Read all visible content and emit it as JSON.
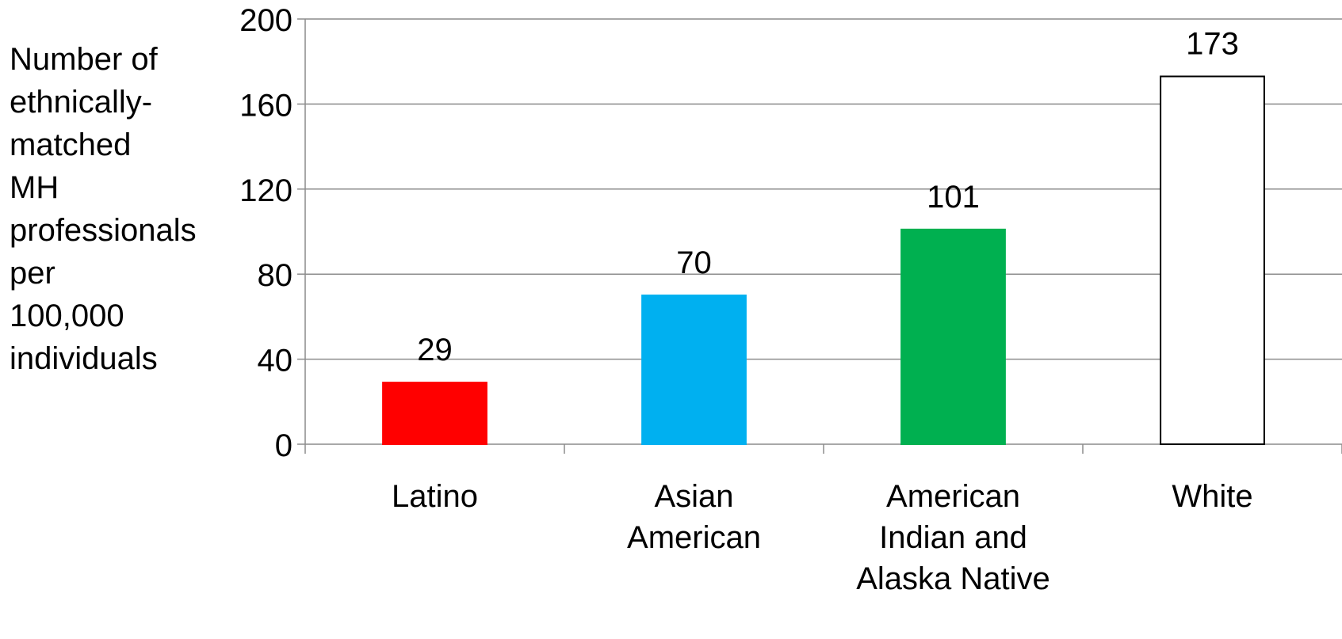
{
  "chart_data": {
    "type": "bar",
    "title": "",
    "ylabel": "Number of\nethnically-\nmatched\nMH\nprofessionals\nper\n100,000\nindividuals",
    "xlabel": "",
    "ylim": [
      0,
      200
    ],
    "yticks": [
      0,
      40,
      80,
      120,
      160,
      200
    ],
    "grid": true,
    "categories": [
      "Latino",
      "Asian\nAmerican",
      "American\nIndian and\nAlaska Native",
      "White"
    ],
    "values": [
      29,
      70,
      101,
      173
    ],
    "data_labels": [
      "29",
      "70",
      "101",
      "173"
    ],
    "bar_colors": [
      "#ff0000",
      "#00b0f0",
      "#00b050",
      "#ffffff"
    ],
    "bar_outline_colors": [
      "#ff0000",
      "#00b0f0",
      "#00b050",
      "#000000"
    ]
  }
}
